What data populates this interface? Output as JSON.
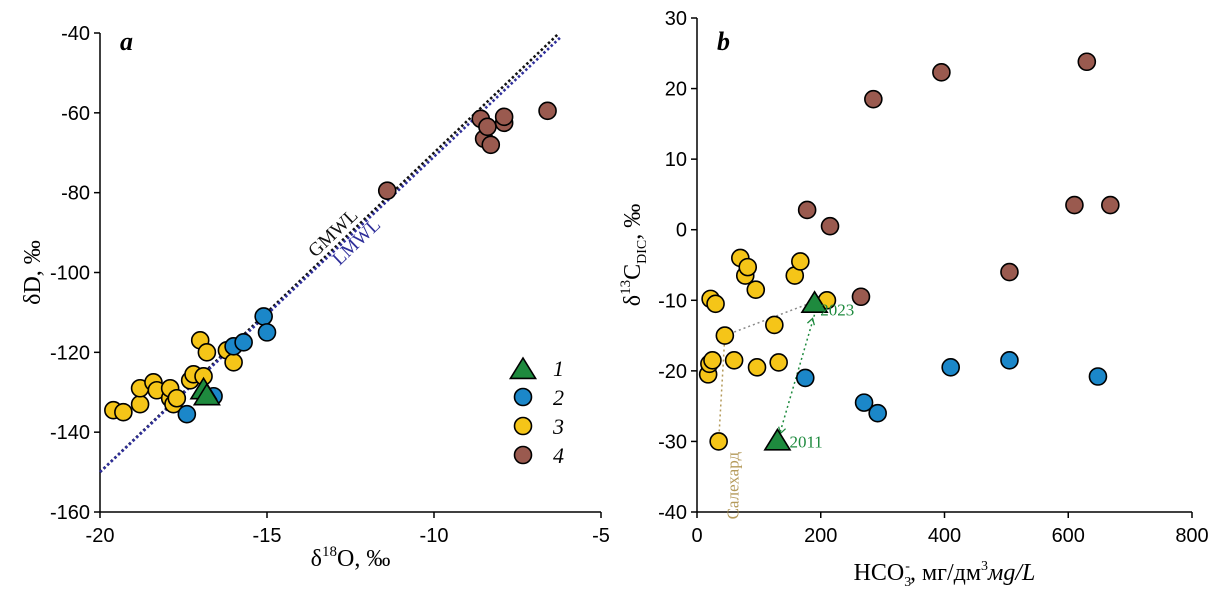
{
  "colors": {
    "group1": "#1e8a3e",
    "group2": "#1b87c9",
    "group3": "#f5c518",
    "group4": "#9a5a4f",
    "gmwl": "#111111",
    "lmwl": "#2e2e9a",
    "annot_green": "#1e8a3e",
    "annot_tan": "#b49a5a"
  },
  "chart_data": [
    {
      "type": "scatter",
      "panel_label": "a",
      "xlabel": "δ18O, ‰",
      "xlabel_main": "δ",
      "xlabel_sup": "18",
      "xlabel_rest": "O, ‰",
      "ylabel": "δD, ‰",
      "xlim": [
        -20,
        -5
      ],
      "ylim": [
        -160,
        -40
      ],
      "xticks": [
        -20,
        -15,
        -10,
        -5
      ],
      "yticks": [
        -160,
        -140,
        -120,
        -100,
        -80,
        -60,
        -40
      ],
      "lines": [
        {
          "name": "GMWL",
          "slope": 8,
          "intercept": 10,
          "x_range": [
            -20,
            -6.3
          ]
        },
        {
          "name": "LMWL",
          "slope": 7.9,
          "intercept": 8.0,
          "x_range": [
            -20,
            -6.2
          ]
        }
      ],
      "legend": [
        "1",
        "2",
        "3",
        "4"
      ],
      "legend_position": "bottom-right",
      "series": [
        {
          "group": "1",
          "marker": "triangle",
          "points": [
            [
              -16.9,
              -129.5
            ],
            [
              -16.8,
              -131.0
            ]
          ]
        },
        {
          "group": "2",
          "marker": "circle",
          "points": [
            [
              -17.4,
              -135.5
            ],
            [
              -16.6,
              -131.0
            ],
            [
              -16.0,
              -118.5
            ],
            [
              -15.7,
              -117.5
            ],
            [
              -15.1,
              -111.0
            ],
            [
              -15.0,
              -115.0
            ]
          ]
        },
        {
          "group": "3",
          "marker": "circle",
          "points": [
            [
              -19.6,
              -134.5
            ],
            [
              -19.3,
              -135.0
            ],
            [
              -18.8,
              -133.0
            ],
            [
              -18.8,
              -129.0
            ],
            [
              -18.4,
              -127.5
            ],
            [
              -18.3,
              -129.5
            ],
            [
              -17.9,
              -131.5
            ],
            [
              -17.9,
              -129.0
            ],
            [
              -17.8,
              -133.0
            ],
            [
              -17.7,
              -131.5
            ],
            [
              -17.3,
              -127.0
            ],
            [
              -17.2,
              -125.5
            ],
            [
              -17.0,
              -117.0
            ],
            [
              -16.9,
              -126.0
            ],
            [
              -16.8,
              -120.0
            ],
            [
              -16.2,
              -119.5
            ],
            [
              -16.0,
              -122.5
            ]
          ]
        },
        {
          "group": "4",
          "marker": "circle",
          "points": [
            [
              -11.4,
              -79.5
            ],
            [
              -8.6,
              -61.5
            ],
            [
              -8.5,
              -66.5
            ],
            [
              -8.4,
              -63.5
            ],
            [
              -8.3,
              -68.0
            ],
            [
              -7.9,
              -62.5
            ],
            [
              -7.9,
              -61.0
            ],
            [
              -6.6,
              -59.5
            ]
          ]
        }
      ]
    },
    {
      "type": "scatter",
      "panel_label": "b",
      "xlabel": "HCO3-, мг/дм3мg/L",
      "xlabel_main": "HCO",
      "xlabel_sub": "3",
      "xlabel_sup": "-",
      "xlabel_rest": ", мг/дм",
      "xlabel_sup2": "3",
      "xlabel_ital": "мg/L",
      "ylabel": "δ13C DIC, ‰",
      "ylabel_pre": "δ",
      "ylabel_sup": "13",
      "ylabel_main": "C",
      "ylabel_sub": "DIC",
      "ylabel_rest": ", ‰",
      "xlim": [
        0,
        800
      ],
      "ylim": [
        -40,
        30
      ],
      "xticks": [
        0,
        200,
        400,
        600,
        800
      ],
      "yticks": [
        -40,
        -30,
        -20,
        -10,
        0,
        10,
        20,
        30
      ],
      "annotations": [
        {
          "text": "2023",
          "x": 183,
          "y": -10
        },
        {
          "text": "2011",
          "x": 130,
          "y": -30
        },
        {
          "text": "Салехард",
          "x": 35,
          "y": -30
        }
      ],
      "series": [
        {
          "group": "1",
          "marker": "triangle",
          "points": [
            [
              130,
              -30.0
            ],
            [
              190,
              -10.5
            ]
          ]
        },
        {
          "group": "2",
          "marker": "circle",
          "points": [
            [
              175,
              -21.0
            ],
            [
              270,
              -24.5
            ],
            [
              292,
              -26.0
            ],
            [
              410,
              -19.5
            ],
            [
              505,
              -18.5
            ],
            [
              648,
              -20.8
            ]
          ]
        },
        {
          "group": "3",
          "marker": "circle",
          "points": [
            [
              18,
              -20.5
            ],
            [
              20,
              -19.0
            ],
            [
              22,
              -9.8
            ],
            [
              25,
              -18.5
            ],
            [
              30,
              -10.5
            ],
            [
              35,
              -30.0
            ],
            [
              45,
              -15.0
            ],
            [
              60,
              -18.5
            ],
            [
              70,
              -4.0
            ],
            [
              78,
              -6.5
            ],
            [
              82,
              -5.3
            ],
            [
              95,
              -8.5
            ],
            [
              97,
              -19.5
            ],
            [
              125,
              -13.5
            ],
            [
              132,
              -18.8
            ],
            [
              158,
              -6.5
            ],
            [
              167,
              -4.5
            ],
            [
              210,
              -10.0
            ]
          ]
        },
        {
          "group": "4",
          "marker": "circle",
          "points": [
            [
              178,
              2.8
            ],
            [
              215,
              0.5
            ],
            [
              265,
              -9.5
            ],
            [
              285,
              18.5
            ],
            [
              395,
              22.3
            ],
            [
              505,
              -6.0
            ],
            [
              610,
              3.5
            ],
            [
              630,
              23.8
            ],
            [
              668,
              3.5
            ]
          ]
        }
      ]
    }
  ]
}
